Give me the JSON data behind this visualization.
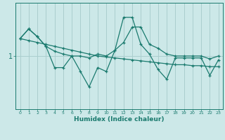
{
  "xlabel": "Humidex (Indice chaleur)",
  "bg_color": "#cce8e8",
  "line_color": "#1a7a6e",
  "grid_color": "#aacece",
  "x": [
    0,
    1,
    2,
    3,
    4,
    5,
    6,
    7,
    8,
    9,
    10,
    11,
    12,
    13,
    14,
    15,
    16,
    17,
    18,
    19,
    20,
    21,
    22,
    23
  ],
  "y_smooth": [
    1.18,
    1.28,
    1.2,
    1.1,
    1.05,
    1.02,
    1.0,
    1.0,
    0.98,
    1.02,
    1.0,
    1.06,
    1.14,
    1.3,
    1.3,
    1.12,
    1.08,
    1.02,
    1.0,
    1.0,
    1.0,
    1.0,
    0.97,
    1.0
  ],
  "y_trend": [
    1.18,
    1.16,
    1.14,
    1.12,
    1.1,
    1.08,
    1.06,
    1.04,
    1.02,
    1.0,
    0.99,
    0.98,
    0.97,
    0.96,
    0.95,
    0.94,
    0.93,
    0.92,
    0.91,
    0.91,
    0.9,
    0.9,
    0.89,
    0.89
  ],
  "y_jagged": [
    1.18,
    1.28,
    1.2,
    1.1,
    0.88,
    0.88,
    1.0,
    0.84,
    0.68,
    0.88,
    0.84,
    1.06,
    1.4,
    1.4,
    1.12,
    1.02,
    0.86,
    0.76,
    0.98,
    0.98,
    0.98,
    0.98,
    0.8,
    0.96
  ],
  "ylim": [
    0.45,
    1.55
  ],
  "xlim": [
    -0.5,
    23.5
  ],
  "ytick_val": 1.0,
  "ytick_label": "1"
}
